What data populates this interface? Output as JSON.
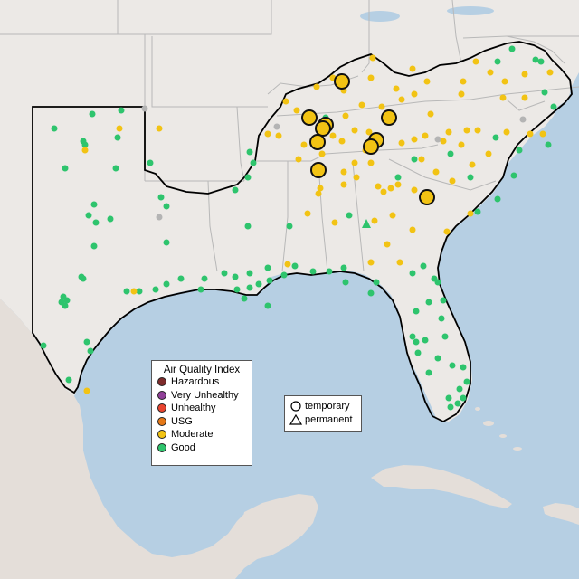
{
  "legend": {
    "title": "Air Quality Index",
    "categories": [
      {
        "label": "Hazardous",
        "color": "#7e2b2b"
      },
      {
        "label": "Very Unhealthy",
        "color": "#8f3f97"
      },
      {
        "label": "Unhealthy",
        "color": "#e8442f"
      },
      {
        "label": "USG",
        "color": "#e57817"
      },
      {
        "label": "Moderate",
        "color": "#f2c314"
      },
      {
        "label": "Good",
        "color": "#2ec46d"
      }
    ]
  },
  "monitor_types": [
    {
      "label": "temporary",
      "icon": "circle-icon"
    },
    {
      "label": "permanent",
      "icon": "triangle-icon"
    }
  ],
  "colors": {
    "land": "#ece9e6",
    "water": "#b6cfe3",
    "state_border": "#b8b8b8",
    "region_border": "#000000",
    "no_data": "#b4b4b4"
  }
}
